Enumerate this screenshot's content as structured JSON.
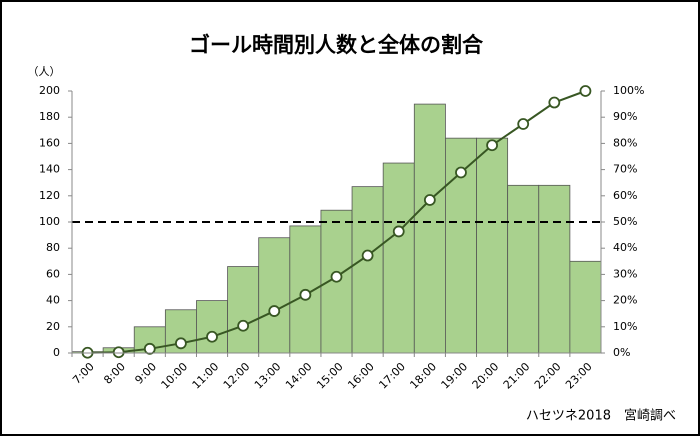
{
  "chart_data": {
    "type": "bar",
    "title": "ゴール時間別人数と全体の割合",
    "y_label": "（人）",
    "footer": "ハセツネ2018　宮崎調べ",
    "categories": [
      "7:00",
      "8:00",
      "9:00",
      "10:00",
      "11:00",
      "12:00",
      "13:00",
      "14:00",
      "15:00",
      "16:00",
      "17:00",
      "18:00",
      "19:00",
      "20:00",
      "21:00",
      "22:00",
      "23:00"
    ],
    "series": [
      {
        "type": "bar",
        "color": "#a9d18e",
        "values": [
          1,
          4,
          20,
          33,
          40,
          66,
          88,
          97,
          109,
          127,
          145,
          190,
          164,
          164,
          128,
          128,
          70
        ]
      },
      {
        "type": "line",
        "axis": "y2",
        "color": "#385723",
        "values": [
          0.1,
          0.3,
          1.6,
          3.7,
          6.2,
          10.4,
          16.0,
          22.2,
          29.1,
          37.2,
          46.4,
          58.4,
          68.9,
          79.3,
          87.4,
          95.6,
          100
        ]
      }
    ],
    "ylim": [
      0,
      200
    ],
    "yticks": [
      0,
      20,
      40,
      60,
      80,
      100,
      120,
      140,
      160,
      180,
      200
    ],
    "y2lim": [
      0,
      100
    ],
    "y2ticks": [
      {
        "value": 0,
        "label": "0%"
      },
      {
        "value": 10,
        "label": "10%"
      },
      {
        "value": 20,
        "label": "20%"
      },
      {
        "value": 30,
        "label": "30%"
      },
      {
        "value": 40,
        "label": "40%"
      },
      {
        "value": 50,
        "label": "50%"
      },
      {
        "value": 60,
        "label": "60%"
      },
      {
        "value": 70,
        "label": "70%"
      },
      {
        "value": 80,
        "label": "80%"
      },
      {
        "value": 90,
        "label": "90%"
      },
      {
        "value": 100,
        "label": "100%"
      }
    ],
    "hline": {
      "value": 100,
      "style": "dashed"
    }
  }
}
